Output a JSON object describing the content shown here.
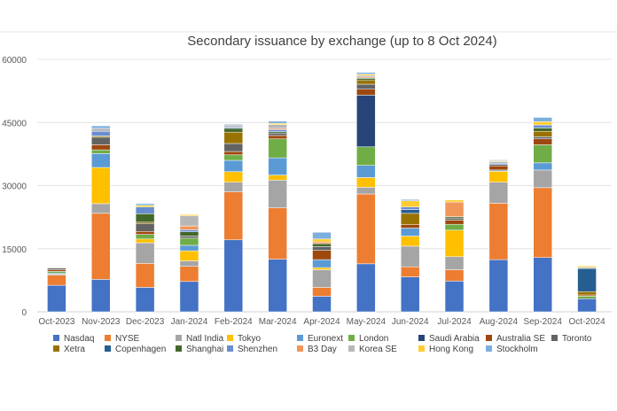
{
  "chart_data": {
    "type": "bar",
    "stacked": true,
    "title": "Secondary issuance by exchange (up to 8 Oct 2024)",
    "xlabel": "",
    "ylabel": "",
    "ylim": [
      0,
      60000
    ],
    "yticks": [
      0,
      15000,
      30000,
      45000,
      60000
    ],
    "grid": true,
    "legend_position": "bottom",
    "categories": [
      "Oct-2023",
      "Nov-2023",
      "Dec-2023",
      "Jan-2024",
      "Feb-2024",
      "Mar-2024",
      "Apr-2024",
      "May-2024",
      "Jun-2024",
      "Jul-2024",
      "Aug-2024",
      "Sep-2024",
      "Oct-2024"
    ],
    "series": [
      {
        "name": "Nasdaq",
        "color": "#4472C4",
        "values": [
          6300,
          7700,
          5800,
          7200,
          17100,
          12500,
          3700,
          11400,
          8300,
          7300,
          12400,
          12900,
          3100
        ]
      },
      {
        "name": "NYSE",
        "color": "#ED7D31",
        "values": [
          2400,
          15700,
          5700,
          3600,
          11400,
          12200,
          2100,
          16600,
          2400,
          2700,
          13400,
          16600,
          0
        ]
      },
      {
        "name": "Natl India",
        "color": "#A5A5A5",
        "values": [
          300,
          2300,
          4900,
          1300,
          2300,
          6600,
          4200,
          1600,
          4900,
          3100,
          5000,
          4200,
          0
        ]
      },
      {
        "name": "Tokyo",
        "color": "#FFC000",
        "values": [
          0,
          8600,
          900,
          2400,
          2500,
          1200,
          500,
          2300,
          2400,
          6300,
          2600,
          0,
          0
        ]
      },
      {
        "name": "Euronext",
        "color": "#5B9BD5",
        "values": [
          200,
          3300,
          0,
          1300,
          2700,
          4100,
          1900,
          2900,
          1900,
          0,
          300,
          1700,
          0
        ]
      },
      {
        "name": "London",
        "color": "#70AD47",
        "values": [
          400,
          900,
          1100,
          1700,
          1300,
          4500,
          0,
          4400,
          0,
          1400,
          0,
          4300,
          600
        ]
      },
      {
        "name": "Saudi Arabia",
        "color": "#264478",
        "values": [
          0,
          0,
          0,
          0,
          0,
          0,
          0,
          12300,
          0,
          0,
          0,
          0,
          0
        ]
      },
      {
        "name": "Australia SE",
        "color": "#9E480E",
        "values": [
          400,
          1200,
          700,
          0,
          800,
          800,
          2200,
          1400,
          800,
          1000,
          1000,
          1400,
          300
        ]
      },
      {
        "name": "Toronto",
        "color": "#636363",
        "values": [
          400,
          1800,
          1900,
          500,
          1900,
          600,
          900,
          1200,
          0,
          500,
          300,
          500,
          0
        ]
      },
      {
        "name": "Xetra",
        "color": "#997300",
        "values": [
          100,
          300,
          300,
          0,
          2700,
          0,
          0,
          900,
          2700,
          0,
          0,
          1300,
          800
        ]
      },
      {
        "name": "Copenhagen",
        "color": "#255E91",
        "values": [
          0,
          0,
          0,
          0,
          0,
          0,
          0,
          0,
          900,
          0,
          0,
          0,
          5500
        ]
      },
      {
        "name": "Shanghai",
        "color": "#43682B",
        "values": [
          0,
          0,
          2000,
          1000,
          900,
          300,
          700,
          500,
          0,
          300,
          0,
          800,
          0
        ]
      },
      {
        "name": "Shenzhen",
        "color": "#698ED0",
        "values": [
          0,
          1100,
          1600,
          500,
          300,
          500,
          0,
          0,
          600,
          0,
          300,
          700,
          0
        ]
      },
      {
        "name": "B3 Day",
        "color": "#F1975A",
        "values": [
          100,
          0,
          0,
          900,
          0,
          300,
          400,
          300,
          0,
          3500,
          0,
          0,
          0
        ]
      },
      {
        "name": "Korea SE",
        "color": "#B7B7B7",
        "values": [
          0,
          700,
          0,
          2400,
          500,
          900,
          0,
          400,
          0,
          0,
          400,
          0,
          300
        ]
      },
      {
        "name": "Hong Kong",
        "color": "#FFCD33",
        "values": [
          0,
          0,
          400,
          300,
          0,
          300,
          700,
          300,
          1500,
          500,
          200,
          800,
          300
        ]
      },
      {
        "name": "Stockholm",
        "color": "#7CAFDD",
        "values": [
          0,
          600,
          400,
          0,
          200,
          500,
          1600,
          400,
          300,
          0,
          200,
          1000,
          0
        ]
      }
    ]
  }
}
